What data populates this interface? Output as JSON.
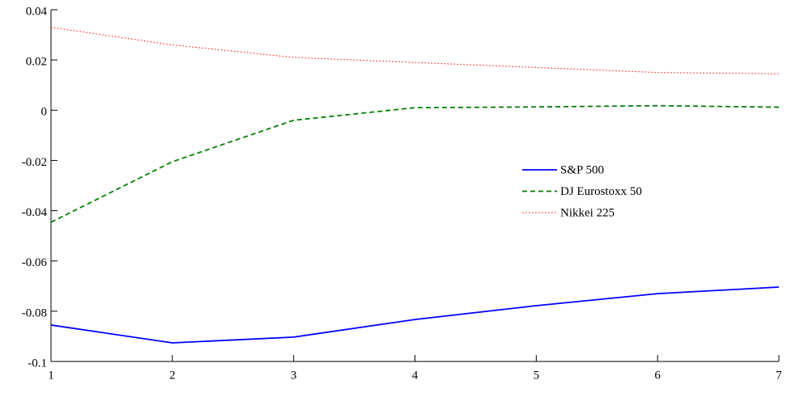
{
  "chart_data": {
    "type": "line",
    "x": [
      1,
      2,
      3,
      4,
      5,
      6,
      7
    ],
    "series": [
      {
        "name": "S&P 500",
        "color": "#0000ff",
        "linestyle": "solid",
        "values": [
          -0.0855,
          -0.0926,
          -0.0903,
          -0.0833,
          -0.0778,
          -0.073,
          -0.0704
        ]
      },
      {
        "name": "DJ Eurostoxx 50",
        "color": "#008000",
        "linestyle": "dashed",
        "values": [
          -0.0446,
          -0.0205,
          -0.004,
          0.001,
          0.0013,
          0.0018,
          0.0012
        ]
      },
      {
        "name": "Nikkei 225",
        "color": "#ff0000",
        "linestyle": "dotted",
        "values": [
          0.033,
          0.026,
          0.021,
          0.019,
          0.017,
          0.015,
          0.0145
        ]
      }
    ],
    "xlim": [
      1,
      7
    ],
    "xticks": [
      1,
      2,
      3,
      4,
      5,
      6,
      7
    ],
    "ylim": [
      -0.1,
      0.04
    ],
    "yticks": [
      -0.1,
      -0.08,
      -0.06,
      -0.04,
      -0.02,
      0,
      0.02,
      0.04
    ],
    "legend": "center-right"
  }
}
